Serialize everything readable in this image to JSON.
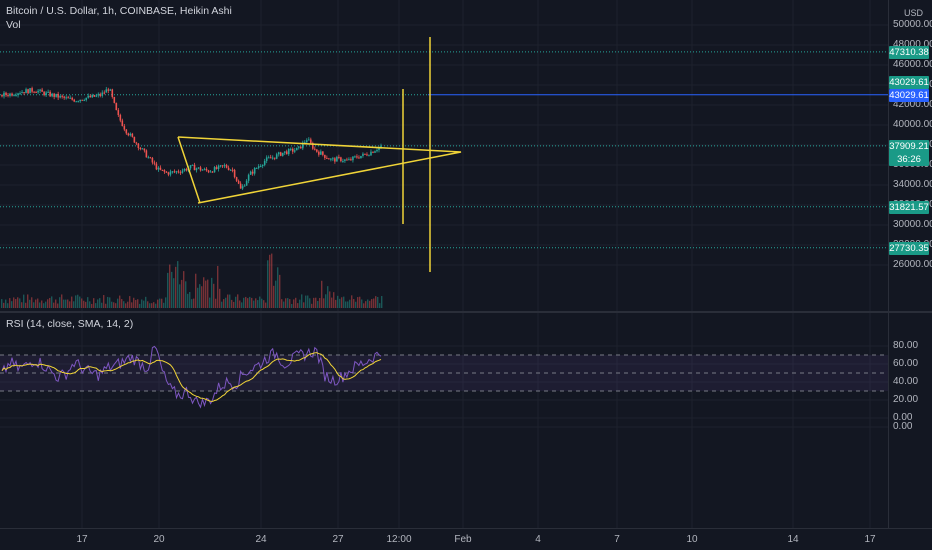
{
  "header": {
    "symbol_line": "Bitcoin / U.S. Dollar, 1h, COINBASE, Heikin Ashi",
    "volume_label": "Vol",
    "currency": "USD"
  },
  "price_axis": {
    "ticks": [
      "50000.00",
      "48000.00",
      "46000.00",
      "44000.00",
      "42000.00",
      "40000.00",
      "38000.00",
      "36000.00",
      "34000.00",
      "32000.00",
      "30000.00",
      "28000.00",
      "26000.00"
    ],
    "tick_values": [
      50000,
      48000,
      46000,
      44000,
      42000,
      40000,
      38000,
      36000,
      34000,
      32000,
      30000,
      28000,
      26000
    ]
  },
  "price_tags": [
    {
      "label": "47310.38",
      "value": 47310.38,
      "style": "green"
    },
    {
      "label": "43029.61",
      "value": 43029.61,
      "style": "green"
    },
    {
      "label": "43029.61",
      "value": 43029.61,
      "style": "blue"
    },
    {
      "label": "37909.21",
      "value": 37909.21,
      "style": "green",
      "sub": "36:26"
    },
    {
      "label": "31821.57",
      "value": 31821.57,
      "style": "green"
    },
    {
      "label": "27730.35",
      "value": 27730.35,
      "style": "green"
    }
  ],
  "rsi": {
    "legend": "RSI (14, close, SMA, 14, 2)",
    "ticks": [
      "80.00",
      "60.00",
      "40.00",
      "20.00",
      "0.00",
      "0.00"
    ],
    "tick_values": [
      80,
      60,
      40,
      20,
      0,
      -10
    ],
    "upper_band": 70,
    "middle_band": 50,
    "lower_band": 30
  },
  "time_axis": {
    "ticks": [
      "17",
      "20",
      "24",
      "27",
      "12:00",
      "Feb",
      "4",
      "7",
      "10",
      "14",
      "17"
    ]
  },
  "colors": {
    "background": "#131722",
    "grid": "#1e222d",
    "up": "#26a69a",
    "down": "#ef5350",
    "drawing": "#f0d438",
    "rsi_line": "#7e57c2",
    "rsi_ma": "#f0d438",
    "level_line": "#26a69a",
    "blue_line": "#2962ff"
  },
  "chart_data": {
    "type": "candlestick",
    "symbol": "Bitcoin / U.S. Dollar",
    "interval": "1h",
    "style": "Heikin Ashi",
    "price_range": [
      25000,
      51000
    ],
    "horizontal_levels": [
      47310.38,
      43029.61,
      37909.21,
      31821.57,
      27730.35
    ],
    "price_path": [
      43000,
      43100,
      43300,
      43400,
      43500,
      43200,
      43000,
      42800,
      42600,
      42500,
      42700,
      42800,
      43000,
      43700,
      41000,
      39500,
      38500,
      37500,
      36500,
      35500,
      35200,
      35300,
      35500,
      35800,
      35600,
      35400,
      35600,
      35900,
      35500,
      33500,
      35000,
      35800,
      36500,
      36800,
      37200,
      37400,
      37600,
      38600,
      37500,
      37000,
      36500,
      36600,
      36400,
      36800,
      37000,
      37400,
      37900
    ],
    "rsi_range": [
      -10,
      90
    ],
    "rsi_path": [
      48,
      62,
      55,
      58,
      65,
      60,
      52,
      45,
      50,
      62,
      55,
      50,
      48,
      55,
      58,
      62,
      68,
      62,
      55,
      80,
      48,
      30,
      25,
      30,
      18,
      16,
      22,
      35,
      40,
      38,
      50,
      55,
      60,
      68,
      72,
      60,
      65,
      70,
      72,
      75,
      48,
      42,
      45,
      52,
      58,
      62,
      68,
      72
    ]
  }
}
